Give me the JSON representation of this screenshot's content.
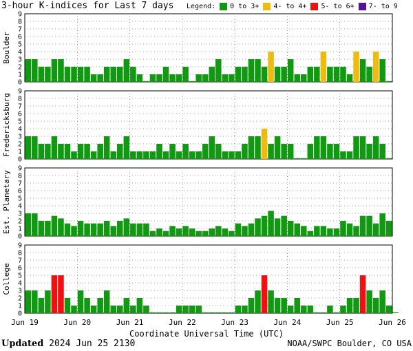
{
  "header": {
    "title": "3-hour K-indices for Last 7 days",
    "legend_label": "Legend:",
    "legend": [
      {
        "label": "0 to 3+",
        "color": "#119911"
      },
      {
        "label": "4- to 4+",
        "color": "#eebb11"
      },
      {
        "label": "5- to 6+",
        "color": "#ee1111"
      },
      {
        "label": "7- to 9",
        "color": "#551199"
      }
    ]
  },
  "chart_data": {
    "type": "bar",
    "xlabel": "Coordinate Universal Time (UTC)",
    "x_ticks": [
      "Jun 19",
      "Jun 20",
      "Jun 21",
      "Jun 22",
      "Jun 23",
      "Jun 24",
      "Jun 25",
      "Jun 26"
    ],
    "ylim": [
      0,
      9
    ],
    "y_ticks": [
      0,
      1,
      2,
      3,
      4,
      5,
      6,
      7,
      8,
      9
    ],
    "grid": true,
    "panels": [
      {
        "name": "Boulder",
        "values": [
          3,
          3,
          2,
          2,
          3,
          3,
          2,
          2,
          2,
          2,
          1,
          1,
          2,
          2,
          2,
          3,
          2,
          1,
          0,
          1,
          1,
          2,
          1,
          1,
          2,
          0,
          1,
          1,
          2,
          3,
          1,
          1,
          2,
          2,
          3,
          3,
          2,
          4,
          2,
          2,
          3,
          1,
          1,
          2,
          2,
          4,
          2,
          2,
          2,
          1,
          4,
          3,
          2,
          4,
          3,
          0
        ]
      },
      {
        "name": "Fredericksburg",
        "values": [
          3,
          3,
          2,
          2,
          3,
          2,
          2,
          1,
          2,
          2,
          1,
          2,
          3,
          1,
          2,
          3,
          1,
          1,
          1,
          1,
          2,
          1,
          2,
          1,
          2,
          1,
          1,
          2,
          3,
          2,
          1,
          1,
          1,
          2,
          3,
          3,
          4,
          2,
          3,
          2,
          2,
          0,
          0,
          2,
          3,
          3,
          2,
          2,
          1,
          1,
          3,
          3,
          2,
          3,
          2,
          0
        ]
      },
      {
        "name": "Est. Planetary",
        "values": [
          3,
          3,
          2,
          2,
          2.67,
          2.33,
          1.67,
          1.33,
          2,
          1.67,
          1.67,
          1.67,
          2,
          1.33,
          2,
          2.33,
          1.67,
          1.67,
          1.67,
          0.67,
          1,
          0.67,
          1.33,
          1,
          1.33,
          1,
          0.67,
          0.67,
          1,
          1.33,
          1,
          0.67,
          1.67,
          1.33,
          1.67,
          2.33,
          2.67,
          3.33,
          2.33,
          2.67,
          2,
          1.67,
          1.33,
          0.67,
          1.33,
          1.33,
          1,
          1,
          2,
          1.67,
          1.33,
          2.67,
          2.67,
          1.67,
          3,
          2
        ]
      },
      {
        "name": "College",
        "values": [
          3,
          3,
          2,
          3,
          5,
          5,
          2,
          1,
          3,
          2,
          1,
          2,
          3,
          1,
          1,
          2,
          1,
          2,
          1,
          0,
          0,
          0,
          0,
          1,
          1,
          1,
          1,
          0,
          0,
          0,
          0,
          0,
          1,
          1,
          2,
          3,
          5,
          3,
          2,
          2,
          1,
          2,
          1,
          1,
          0,
          0,
          1,
          0,
          1,
          2,
          2,
          5,
          3,
          2,
          3,
          1,
          0
        ]
      }
    ]
  },
  "footer": {
    "updated_label": "Updated",
    "updated_value": "2024 Jun 25 2130",
    "credit": "NOAA/SWPC Boulder, CO USA"
  }
}
